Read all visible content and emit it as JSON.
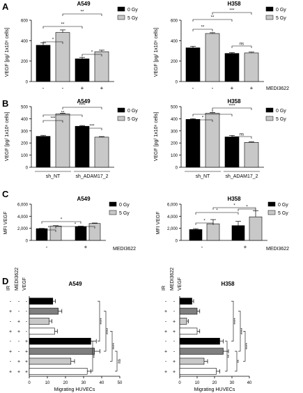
{
  "panel_letters": [
    "A",
    "B",
    "C",
    "D"
  ],
  "legend": {
    "ab": [
      "0 Gy",
      "5 Gy"
    ],
    "c": [
      "0 Gy",
      "5 Gy"
    ]
  },
  "colors": {
    "g0": "#000000",
    "g5": "#c8c8c8",
    "d_fills": [
      "#000000",
      "#7f7f7f",
      "#c8c8c8",
      "#ffffff"
    ]
  },
  "chart_data": [
    {
      "id": "A-A549",
      "type": "bar",
      "panel": "A",
      "title": "A549",
      "ylabel": "VEGF [pg/ 1x10⁶ cells]",
      "ylim": [
        0,
        600
      ],
      "yticks": [
        "0",
        "200",
        "400",
        "600"
      ],
      "x_labels": [
        "-",
        "-",
        "+",
        "+"
      ],
      "x_note": "",
      "fills": [
        "g0",
        "g5",
        "g0",
        "g5"
      ],
      "values": [
        355,
        480,
        222,
        292
      ],
      "errors": [
        25,
        25,
        15,
        15
      ],
      "significance": [
        "*",
        "**",
        "**",
        "*"
      ]
    },
    {
      "id": "A-H358",
      "type": "bar",
      "panel": "A",
      "title": "H358",
      "ylabel": "VEGF [pg/ 1x10⁶ cells]",
      "ylim": [
        0,
        600
      ],
      "yticks": [
        "0",
        "200",
        "400",
        "600"
      ],
      "x_labels": [
        "-",
        "-",
        "+",
        "+"
      ],
      "x_note": "MEDI3622",
      "fills": [
        "g0",
        "g5",
        "g0",
        "g5"
      ],
      "values": [
        330,
        470,
        275,
        280
      ],
      "errors": [
        15,
        8,
        8,
        8
      ],
      "significance": [
        "**",
        "**",
        "***",
        "ns"
      ]
    },
    {
      "id": "B-A549",
      "type": "bar",
      "panel": "B",
      "title": "A549",
      "ylabel": "VEGF [pg/ 1x10⁶ cells]",
      "ylim": [
        0,
        500
      ],
      "yticks": [
        "0",
        "100",
        "200",
        "300",
        "400",
        "500"
      ],
      "group_labels": [
        "sh_NT",
        "sh_ADAM17_2"
      ],
      "fills": [
        "g0",
        "g5",
        "g0",
        "g5"
      ],
      "values": [
        255,
        440,
        338,
        248
      ],
      "errors": [
        8,
        5,
        6,
        5
      ],
      "significance": [
        "***",
        "**",
        "****",
        "***"
      ]
    },
    {
      "id": "B-H358",
      "type": "bar",
      "panel": "B",
      "title": "H358",
      "ylabel": "VEGF [pg/ 1x10⁶ cells]",
      "ylim": [
        0,
        500
      ],
      "yticks": [
        "0",
        "100",
        "200",
        "300",
        "400",
        "500"
      ],
      "group_labels": [
        "sh_NT",
        "sh_ADAM17_2"
      ],
      "fills": [
        "g0",
        "g5",
        "g0",
        "g5"
      ],
      "values": [
        395,
        445,
        250,
        205
      ],
      "errors": [
        6,
        6,
        12,
        5
      ],
      "significance": [
        "*",
        "*",
        "****",
        "ns"
      ]
    },
    {
      "id": "C-A549",
      "type": "bar",
      "panel": "C",
      "title": "A549",
      "ylabel": "MFI VEGF",
      "ylim": [
        0,
        6000
      ],
      "yticks": [
        "0",
        "2,000",
        "4,000",
        "6,000"
      ],
      "x_labels": [
        "-",
        "+"
      ],
      "x_note": "MEDI3622",
      "fills": [
        "g0",
        "g5",
        "g0",
        "g5"
      ],
      "values": [
        1950,
        2380,
        2280,
        2800
      ],
      "errors": [
        40,
        60,
        80,
        80
      ],
      "significance": [
        "*",
        "*",
        "*"
      ]
    },
    {
      "id": "C-H358",
      "type": "bar",
      "panel": "C",
      "title": "H358",
      "ylabel": "MFI VEGF",
      "ylim": [
        0,
        6000
      ],
      "yticks": [
        "0",
        "2,000",
        "4,000",
        "6,000"
      ],
      "x_labels": [
        "-",
        "+"
      ],
      "x_note": "MEDI3622",
      "fills": [
        "g0",
        "g5",
        "g0",
        "g5"
      ],
      "values": [
        1800,
        2750,
        2450,
        3900
      ],
      "errors": [
        150,
        700,
        700,
        1000
      ],
      "significance": [
        "*",
        "*",
        "*",
        "*"
      ]
    },
    {
      "id": "D-A549",
      "type": "bar",
      "orientation": "horizontal",
      "panel": "D",
      "title": "A549",
      "xlabel": "Migrating HUVECs",
      "xlim": [
        0,
        50
      ],
      "xticks": [
        "0",
        "10",
        "20",
        "30",
        "40",
        "50"
      ],
      "row_headers": [
        "VEGF",
        "MEDI3622",
        "IR"
      ],
      "rows": [
        {
          "signs": [
            "-",
            "-",
            "-"
          ],
          "value": 13,
          "error": 1.5
        },
        {
          "signs": [
            "-",
            "-",
            "+"
          ],
          "value": 16,
          "error": 2
        },
        {
          "signs": [
            "-",
            "+",
            "-"
          ],
          "value": 11,
          "error": 1.5
        },
        {
          "signs": [
            "-",
            "+",
            "+"
          ],
          "value": 14,
          "error": 1.5
        },
        {
          "signs": [
            "+",
            "-",
            "-"
          ],
          "value": 34,
          "error": 3
        },
        {
          "signs": [
            "+",
            "-",
            "+"
          ],
          "value": 36,
          "error": 3
        },
        {
          "signs": [
            "+",
            "+",
            "-"
          ],
          "value": 23,
          "error": 2
        },
        {
          "signs": [
            "+",
            "+",
            "+"
          ],
          "value": 32,
          "error": 2
        }
      ],
      "significance": [
        "****",
        "****",
        "****",
        "**",
        "ns"
      ]
    },
    {
      "id": "D-H358",
      "type": "bar",
      "orientation": "horizontal",
      "panel": "D",
      "title": "H358",
      "xlabel": "Migrating HUVECs",
      "xlim": [
        0,
        40
      ],
      "xticks": [
        "0",
        "10",
        "20",
        "30",
        "40"
      ],
      "row_headers": [
        "VEGF",
        "MEDI3622",
        "IR"
      ],
      "rows": [
        {
          "signs": [
            "-",
            "-",
            "-"
          ],
          "value": 7,
          "error": 1
        },
        {
          "signs": [
            "-",
            "-",
            "+"
          ],
          "value": 10,
          "error": 1.5
        },
        {
          "signs": [
            "-",
            "+",
            "-"
          ],
          "value": 4,
          "error": 1
        },
        {
          "signs": [
            "-",
            "+",
            "+"
          ],
          "value": 10,
          "error": 1.5
        },
        {
          "signs": [
            "+",
            "-",
            "-"
          ],
          "value": 23,
          "error": 2
        },
        {
          "signs": [
            "+",
            "-",
            "+"
          ],
          "value": 25,
          "error": 3
        },
        {
          "signs": [
            "+",
            "+",
            "-"
          ],
          "value": 14,
          "error": 2
        },
        {
          "signs": [
            "+",
            "+",
            "+"
          ],
          "value": 21,
          "error": 2
        }
      ],
      "significance": [
        "****",
        "****",
        "****",
        "**",
        "**"
      ]
    }
  ]
}
